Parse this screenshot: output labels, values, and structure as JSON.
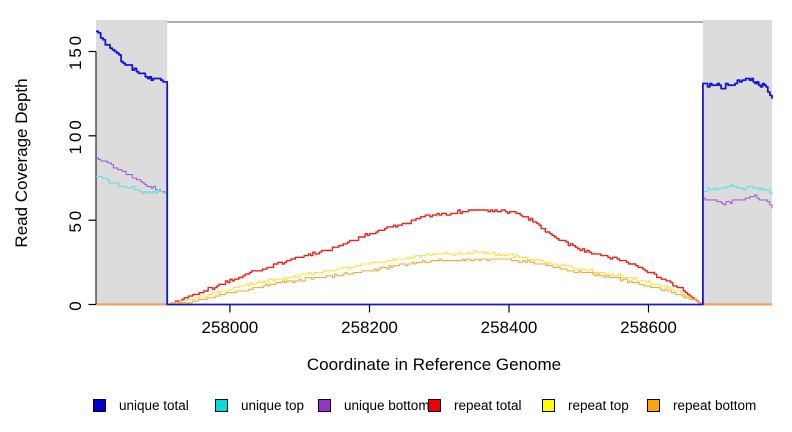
{
  "chart_data": {
    "type": "line",
    "title": "",
    "xlabel": "Coordinate in Reference Genome",
    "ylabel": "Read Coverage Depth",
    "xlim": [
      257808,
      258777
    ],
    "ylim": [
      0,
      168
    ],
    "xticks": [
      258000,
      258200,
      258400,
      258600
    ],
    "yticks": [
      0,
      50,
      100,
      150
    ],
    "grid": false,
    "legend_position": "bottom",
    "shaded_regions": [
      {
        "x0": 257808,
        "x1": 257910,
        "color": "#DCDCDC"
      },
      {
        "x0": 258678,
        "x1": 258777,
        "color": "#DCDCDC"
      }
    ],
    "series": [
      {
        "name": "repeat total",
        "color": "#E8231C",
        "width": 1.4,
        "noise": 0.8,
        "points": [
          [
            257808,
            0
          ],
          [
            257910,
            0
          ],
          [
            257925,
            2
          ],
          [
            257950,
            6
          ],
          [
            257975,
            10
          ],
          [
            258000,
            14
          ],
          [
            258025,
            18
          ],
          [
            258050,
            22
          ],
          [
            258075,
            25
          ],
          [
            258100,
            28
          ],
          [
            258125,
            31
          ],
          [
            258150,
            34
          ],
          [
            258175,
            38
          ],
          [
            258200,
            42
          ],
          [
            258225,
            45
          ],
          [
            258250,
            48
          ],
          [
            258270,
            51
          ],
          [
            258290,
            53
          ],
          [
            258310,
            54
          ],
          [
            258330,
            55
          ],
          [
            258360,
            56
          ],
          [
            258380,
            55
          ],
          [
            258395,
            55
          ],
          [
            258410,
            54
          ],
          [
            258425,
            51
          ],
          [
            258440,
            48
          ],
          [
            258455,
            43
          ],
          [
            258475,
            38
          ],
          [
            258495,
            34
          ],
          [
            258515,
            31
          ],
          [
            258535,
            29
          ],
          [
            258555,
            27
          ],
          [
            258575,
            24
          ],
          [
            258595,
            20
          ],
          [
            258615,
            16
          ],
          [
            258635,
            12
          ],
          [
            258650,
            8
          ],
          [
            258662,
            4
          ],
          [
            258672,
            1
          ],
          [
            258678,
            0
          ],
          [
            258777,
            0
          ]
        ]
      },
      {
        "name": "repeat top",
        "color": "#F2E34A",
        "width": 1.1,
        "noise": 0.7,
        "points": [
          [
            257808,
            0
          ],
          [
            257910,
            0
          ],
          [
            257935,
            2
          ],
          [
            257960,
            5
          ],
          [
            257990,
            8
          ],
          [
            258020,
            11
          ],
          [
            258050,
            14
          ],
          [
            258080,
            16
          ],
          [
            258110,
            18
          ],
          [
            258140,
            20
          ],
          [
            258170,
            22
          ],
          [
            258200,
            24
          ],
          [
            258230,
            26
          ],
          [
            258260,
            28
          ],
          [
            258290,
            30
          ],
          [
            258320,
            30
          ],
          [
            258350,
            31
          ],
          [
            258380,
            30
          ],
          [
            258400,
            29
          ],
          [
            258420,
            28
          ],
          [
            258440,
            26
          ],
          [
            258460,
            24
          ],
          [
            258480,
            23
          ],
          [
            258500,
            21
          ],
          [
            258520,
            20
          ],
          [
            258540,
            18
          ],
          [
            258560,
            17
          ],
          [
            258580,
            15
          ],
          [
            258600,
            13
          ],
          [
            258620,
            11
          ],
          [
            258640,
            8
          ],
          [
            258655,
            5
          ],
          [
            258668,
            2
          ],
          [
            258676,
            0
          ],
          [
            258777,
            0
          ]
        ]
      },
      {
        "name": "repeat bottom",
        "color": "#F7A83B",
        "width": 1.1,
        "noise": 0.6,
        "points": [
          [
            257808,
            0
          ],
          [
            257910,
            0
          ],
          [
            257940,
            1
          ],
          [
            257970,
            4
          ],
          [
            258000,
            7
          ],
          [
            258030,
            9
          ],
          [
            258060,
            12
          ],
          [
            258090,
            14
          ],
          [
            258120,
            16
          ],
          [
            258150,
            17
          ],
          [
            258180,
            19
          ],
          [
            258210,
            21
          ],
          [
            258240,
            23
          ],
          [
            258270,
            25
          ],
          [
            258300,
            26
          ],
          [
            258330,
            26
          ],
          [
            258360,
            27
          ],
          [
            258390,
            27
          ],
          [
            258410,
            26
          ],
          [
            258430,
            25
          ],
          [
            258450,
            23
          ],
          [
            258470,
            22
          ],
          [
            258490,
            20
          ],
          [
            258510,
            19
          ],
          [
            258530,
            17
          ],
          [
            258550,
            16
          ],
          [
            258570,
            14
          ],
          [
            258590,
            12
          ],
          [
            258610,
            10
          ],
          [
            258630,
            8
          ],
          [
            258648,
            5
          ],
          [
            258662,
            3
          ],
          [
            258674,
            1
          ],
          [
            258680,
            0
          ],
          [
            258777,
            0
          ]
        ]
      },
      {
        "name": "unique bottom",
        "color": "#A55FD6",
        "width": 1.1,
        "noise": 0.9,
        "points": [
          [
            257808,
            87
          ],
          [
            257818,
            85
          ],
          [
            257830,
            83
          ],
          [
            257842,
            80
          ],
          [
            257854,
            77
          ],
          [
            257866,
            74
          ],
          [
            257878,
            71
          ],
          [
            257890,
            69
          ],
          [
            257900,
            67
          ],
          [
            257910,
            66
          ],
          [
            257910,
            0
          ],
          [
            258678,
            0
          ],
          [
            258678,
            63
          ],
          [
            258688,
            62
          ],
          [
            258698,
            61
          ],
          [
            258708,
            60
          ],
          [
            258720,
            61
          ],
          [
            258732,
            62
          ],
          [
            258742,
            63
          ],
          [
            258752,
            64
          ],
          [
            258762,
            62
          ],
          [
            258770,
            61
          ],
          [
            258777,
            57
          ]
        ]
      },
      {
        "name": "unique top",
        "color": "#5FE0E0",
        "width": 1.1,
        "noise": 0.9,
        "points": [
          [
            257808,
            76
          ],
          [
            257820,
            74
          ],
          [
            257834,
            72
          ],
          [
            257848,
            70
          ],
          [
            257860,
            69
          ],
          [
            257874,
            67
          ],
          [
            257886,
            66
          ],
          [
            257896,
            67
          ],
          [
            257904,
            66
          ],
          [
            257910,
            66
          ],
          [
            257910,
            0
          ],
          [
            258678,
            0
          ],
          [
            258678,
            67
          ],
          [
            258688,
            68
          ],
          [
            258700,
            69
          ],
          [
            258712,
            70
          ],
          [
            258724,
            70
          ],
          [
            258736,
            69
          ],
          [
            258746,
            70
          ],
          [
            258756,
            69
          ],
          [
            258764,
            68
          ],
          [
            258771,
            67
          ],
          [
            258777,
            64
          ]
        ]
      },
      {
        "name": "unique total",
        "color": "#1717CE",
        "width": 1.8,
        "noise": 1.3,
        "points": [
          [
            257808,
            162
          ],
          [
            257818,
            157
          ],
          [
            257828,
            152
          ],
          [
            257838,
            148
          ],
          [
            257850,
            143
          ],
          [
            257860,
            140
          ],
          [
            257872,
            137
          ],
          [
            257882,
            135
          ],
          [
            257890,
            133
          ],
          [
            257898,
            134
          ],
          [
            257904,
            132
          ],
          [
            257910,
            133
          ],
          [
            257910,
            0
          ],
          [
            258678,
            0
          ],
          [
            258678,
            131
          ],
          [
            258688,
            130
          ],
          [
            258696,
            131
          ],
          [
            258704,
            129
          ],
          [
            258714,
            130
          ],
          [
            258724,
            132
          ],
          [
            258734,
            133
          ],
          [
            258742,
            135
          ],
          [
            258750,
            132
          ],
          [
            258758,
            131
          ],
          [
            258766,
            130
          ],
          [
            258771,
            127
          ],
          [
            258777,
            122
          ]
        ]
      }
    ],
    "legend": [
      {
        "label": "unique total",
        "color": "#0000CD"
      },
      {
        "label": "unique top",
        "color": "#00DDDD"
      },
      {
        "label": "unique bottom",
        "color": "#9932CC"
      },
      {
        "label": "repeat total",
        "color": "#EE0000"
      },
      {
        "label": "repeat top",
        "color": "#FFFF00"
      },
      {
        "label": "repeat bottom",
        "color": "#FFA500"
      }
    ]
  }
}
